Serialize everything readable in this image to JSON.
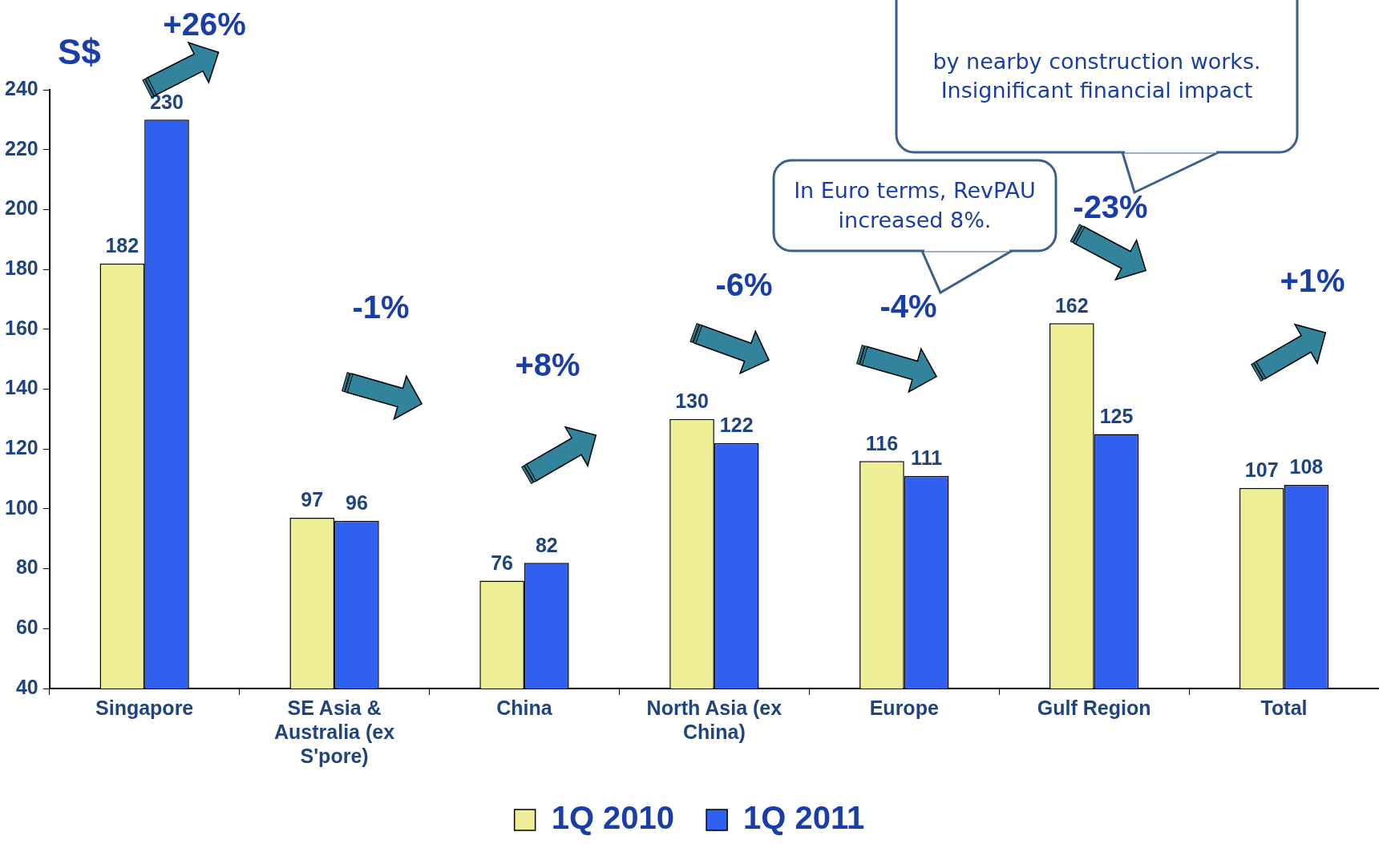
{
  "chart_data": {
    "type": "bar",
    "ylabel": "S$",
    "categories": [
      "Singapore",
      "SE Asia & Australia (ex S'pore)",
      "China",
      "North Asia (ex China)",
      "Europe",
      "Gulf Region",
      "Total"
    ],
    "series": [
      {
        "name": "1Q 2010",
        "color": "#eeee96",
        "values": [
          182,
          97,
          76,
          130,
          116,
          162,
          107
        ]
      },
      {
        "name": "1Q 2011",
        "color": "#3060f0",
        "values": [
          230,
          96,
          82,
          122,
          111,
          125,
          108
        ]
      }
    ],
    "ylim": [
      40,
      240
    ],
    "yticks": [
      40,
      60,
      80,
      100,
      120,
      140,
      160,
      180,
      200,
      220,
      240
    ],
    "data_labels": true,
    "grid": false,
    "legend": "bottom",
    "annotations": [
      "+26%",
      "-1%",
      "+8%",
      "-6%",
      "-4%",
      "-23%",
      "+1%",
      "In Euro terms, RevPAU increased  8%.",
      "by nearby construction works. Insignificant financial impact"
    ]
  }
}
